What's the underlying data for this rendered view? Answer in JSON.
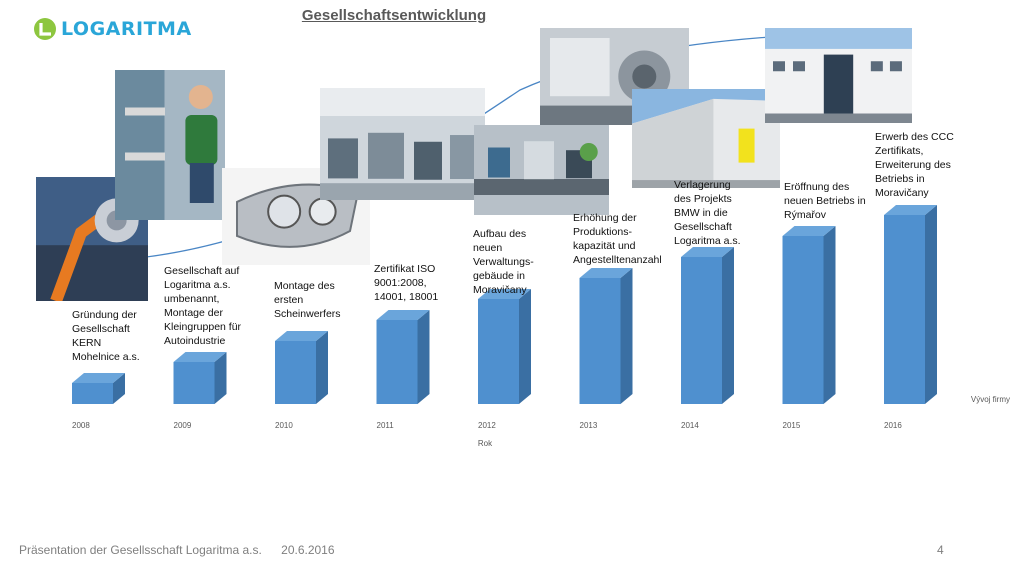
{
  "logo": {
    "text": "LOGARITMA",
    "colors": {
      "green": "#8dc63f",
      "blue": "#2aa6d8"
    }
  },
  "slide": {
    "title": "Gesellschaftsentwicklung"
  },
  "chart_data": {
    "type": "bar",
    "style": "3d-column",
    "color": "#4f90cf",
    "side_color": "#3a6fa3",
    "top_color": "#6aa5db",
    "categories": [
      "2008",
      "2009",
      "2010",
      "2011",
      "2012",
      "2013",
      "2014",
      "2015",
      "2016"
    ],
    "series": [
      {
        "name": "Vývoj firmy",
        "values": [
          2,
          4,
          6,
          8,
          10,
          12,
          14,
          16,
          18
        ]
      }
    ],
    "xlabel": "Rok",
    "ylabel": "",
    "ylim": [
      0,
      18
    ],
    "legend": "right",
    "grid": false,
    "annotations": [
      "Gründung der\nGesellschaft\nKERN\nMohelnice a.s.",
      "Gesellschaft auf\nLogaritma a.s.\numbenannt,\nMontage der\nKleingruppen für\nAutoindustrie",
      "Montage des\nersten\nScheinwerfers",
      "Zertifikat ISO\n9001:2008,\n14001, 18001",
      "Aufbau des\nneuen\nVerwaltungs-\ngebäude in\nMoravičany",
      "Erhöhung der\nProduktions-\nkapazität und\nAngestelltenanzahl",
      "Verlagerung\ndes Projekts\nBMW in die\nGesellschaft\nLogaritma a.s.",
      "Eröffnung des\nneuen Betriebs in\nRýmařov",
      "Erwerb des CCC\nZertifikats,\nErweiterung des\nBetriebs in\nMoravičany"
    ]
  },
  "photos": [
    {
      "name": "robot-arm-photo"
    },
    {
      "name": "worker-assembly-photo"
    },
    {
      "name": "headlight-photo"
    },
    {
      "name": "production-hall-photo"
    },
    {
      "name": "assembly-line-photo"
    },
    {
      "name": "machinery-photo"
    },
    {
      "name": "warehouse-building-photo"
    },
    {
      "name": "headquarters-building-photo"
    }
  ],
  "footer": {
    "presentation": "Präsentation der Gesellsschaft Logaritma a.s.",
    "date": "20.6.2016",
    "page": "4"
  }
}
